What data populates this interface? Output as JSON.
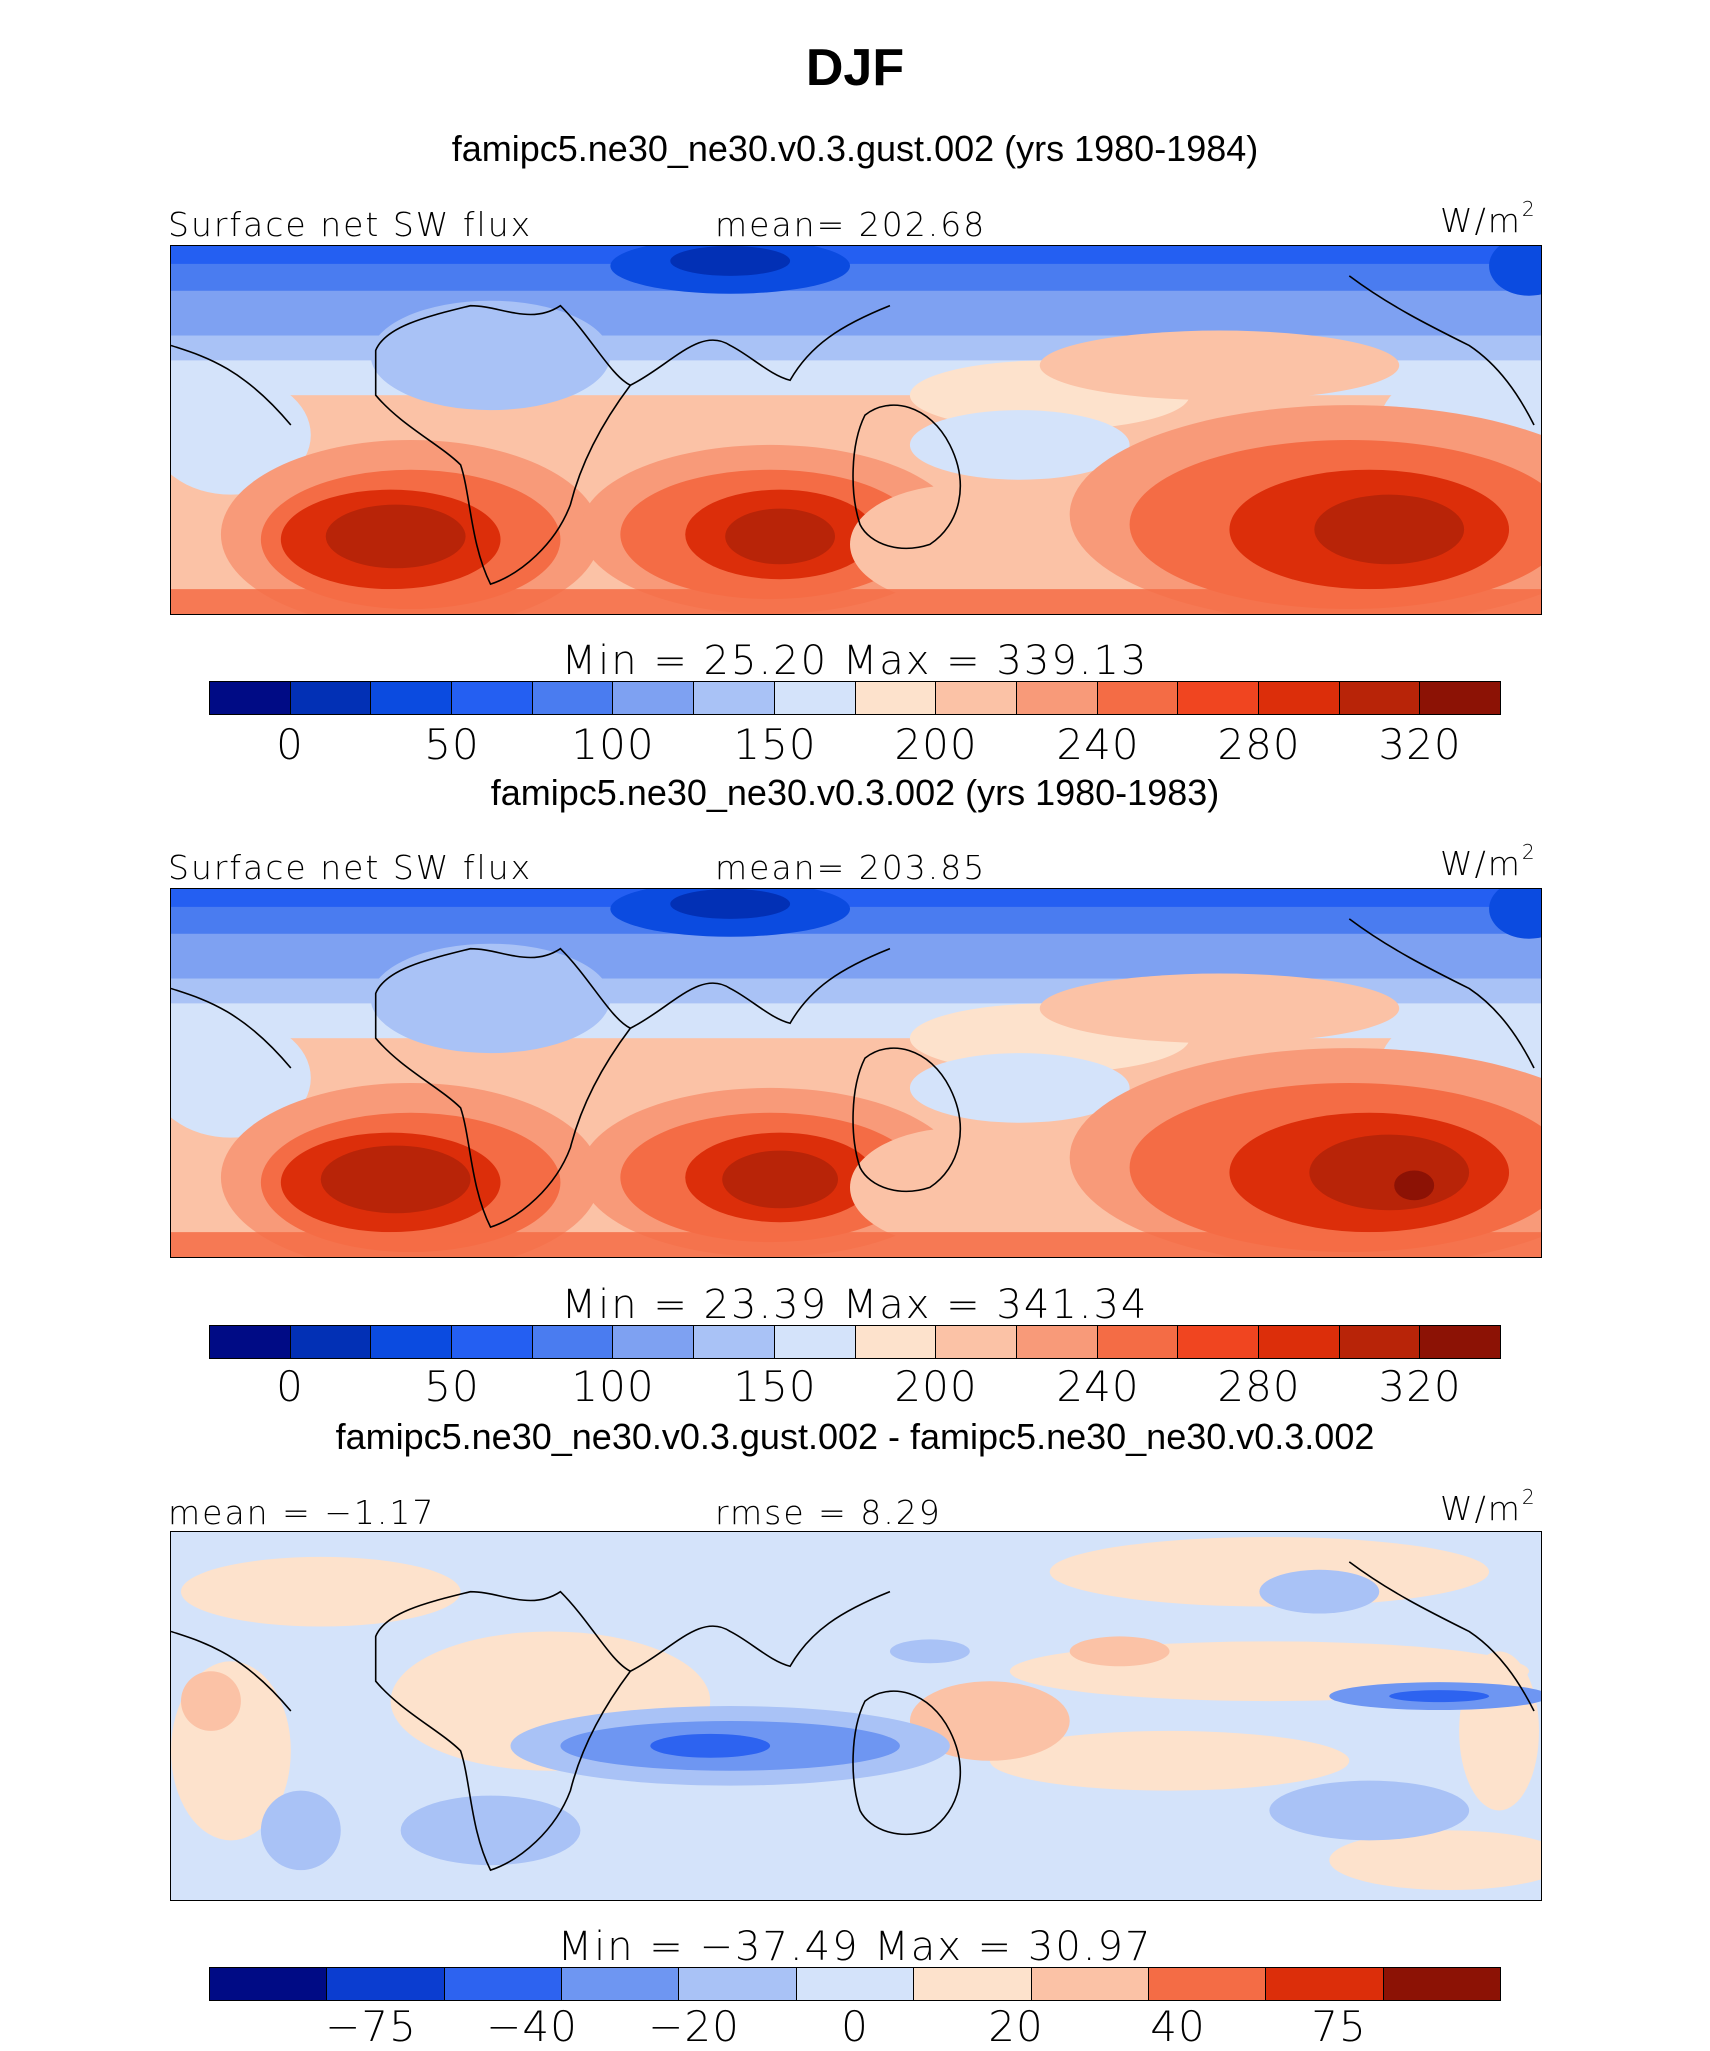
{
  "title": "DJF",
  "units": {
    "base": "W/m",
    "exp": "2"
  },
  "panels": [
    {
      "subtitle": "famipc5.ne30_ne30.v0.3.gust.002 (yrs 1980-1984)",
      "left_label": "Surface net SW flux",
      "center_label": "mean= 202.68",
      "stats": "Min = 25.20 Max = 339.13",
      "ticks": [
        "0",
        "50",
        "100",
        "150",
        "200",
        "240",
        "280",
        "320"
      ],
      "colors": [
        "#000b85",
        "#0230b5",
        "#0b4be0",
        "#245ff2",
        "#4a7cf0",
        "#7ea1f2",
        "#a9c2f6",
        "#d4e3fa",
        "#fde2cc",
        "#fbc2a6",
        "#f89a79",
        "#f46c45",
        "#f04520",
        "#dc2e0a",
        "#b82408",
        "#8c1205"
      ]
    },
    {
      "subtitle": "famipc5.ne30_ne30.v0.3.002 (yrs 1980-1983)",
      "left_label": "Surface net SW flux",
      "center_label": "mean= 203.85",
      "stats": "Min = 23.39 Max = 341.34",
      "ticks": [
        "0",
        "50",
        "100",
        "150",
        "200",
        "240",
        "280",
        "320"
      ],
      "colors": [
        "#000b85",
        "#0230b5",
        "#0b4be0",
        "#245ff2",
        "#4a7cf0",
        "#7ea1f2",
        "#a9c2f6",
        "#d4e3fa",
        "#fde2cc",
        "#fbc2a6",
        "#f89a79",
        "#f46c45",
        "#f04520",
        "#dc2e0a",
        "#b82408",
        "#8c1205"
      ]
    },
    {
      "subtitle": "famipc5.ne30_ne30.v0.3.gust.002 - famipc5.ne30_ne30.v0.3.002",
      "left_label": "mean = −1.17",
      "center_label": "rmse = 8.29",
      "stats": "Min = −37.49 Max = 30.97",
      "ticks": [
        "−75",
        "−40",
        "−20",
        "0",
        "20",
        "40",
        "75"
      ],
      "colors": [
        "#000b85",
        "#0b3dd0",
        "#2d63f0",
        "#6e96f2",
        "#a9c2f6",
        "#d4e3fa",
        "#fde2cc",
        "#fbc2a6",
        "#f46c45",
        "#dc2e0a",
        "#8c1205"
      ]
    }
  ]
}
